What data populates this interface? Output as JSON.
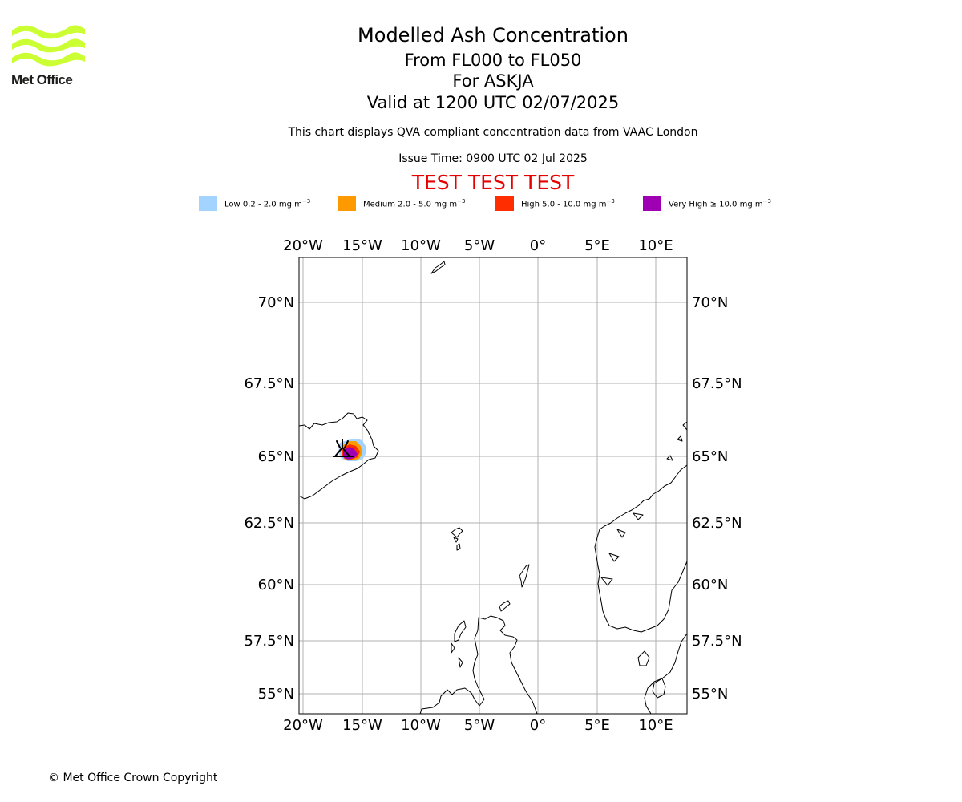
{
  "logo": {
    "text": "Met Office",
    "color": "#ccff33"
  },
  "header": {
    "title": "Modelled Ash Concentration",
    "levels": "From FL000 to FL050",
    "volcano": "For ASKJA",
    "valid": "Valid at 1200 UTC 02/07/2025",
    "description": "This chart displays QVA compliant concentration data from VAAC London",
    "issue_time": "Issue Time: 0900 UTC 02 Jul 2025",
    "test_banner": "TEST TEST TEST"
  },
  "legend": [
    {
      "label": "Low 0.2 - 2.0 mg m",
      "unit_exp": "−3",
      "color": "#a3d3ff"
    },
    {
      "label": "Medium 2.0 - 5.0 mg m",
      "unit_exp": "−3",
      "color": "#ff9900"
    },
    {
      "label": "High 5.0 - 10.0 mg m",
      "unit_exp": "−3",
      "color": "#ff2d00"
    },
    {
      "label": "Very High  ≥  10.0 mg m",
      "unit_exp": "−3",
      "color": "#a000b4"
    }
  ],
  "map": {
    "lon_ticks": [
      "20°W",
      "15°W",
      "10°W",
      "5°W",
      "0°",
      "5°E",
      "10°E"
    ],
    "lat_ticks": [
      "70°N",
      "67.5°N",
      "65°N",
      "62.5°N",
      "60°N",
      "57.5°N",
      "55°N"
    ],
    "volcano_icon": "volcano-icon",
    "gridline_color": "#b0b0b0"
  },
  "footer": {
    "copyright": "© Met Office Crown Copyright"
  }
}
